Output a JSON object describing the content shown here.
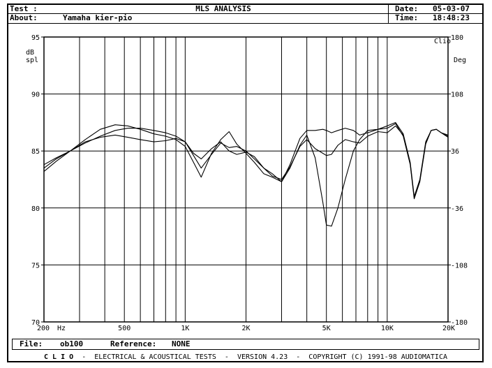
{
  "header": {
    "test_label": "Test :",
    "title": "MLS ANALYSIS",
    "date_label": "Date:",
    "date_value": "05-03-07",
    "about_label": "About:",
    "about_value": "Yamaha kier-pio",
    "time_label": "Time:",
    "time_value": "18:48:23"
  },
  "file_bar": {
    "file_label": "File:",
    "file_value": "ob100",
    "reference_label": "Reference:",
    "reference_value": "NONE"
  },
  "footer": {
    "brand": "C L I O",
    "text": "-  ELECTRICAL & ACOUSTICAL TESTS  -  VERSION 4.23  -  COPYRIGHT (C) 1991-98 AUDIOMATICA"
  },
  "chart_data": {
    "type": "line",
    "corner_label": "Clio",
    "y_left_label_line1": "dB",
    "y_left_label_line2": "spl",
    "y_right_label": "Deg",
    "x_unit_label": "Hz",
    "x_scale": "log",
    "xlim": [
      200,
      20000
    ],
    "ylim": [
      70,
      95
    ],
    "y_right_lim": [
      -180,
      180
    ],
    "x_tick_labels": [
      {
        "x": 200,
        "label": "200"
      },
      {
        "x": 500,
        "label": "500"
      },
      {
        "x": 1000,
        "label": "1K"
      },
      {
        "x": 2000,
        "label": "2K"
      },
      {
        "x": 5000,
        "label": "5K"
      },
      {
        "x": 10000,
        "label": "10K"
      },
      {
        "x": 20000,
        "label": "20K"
      }
    ],
    "x_gridlines": [
      300,
      400,
      500,
      600,
      700,
      800,
      900,
      1000,
      2000,
      3000,
      4000,
      5000,
      6000,
      7000,
      8000,
      9000,
      10000
    ],
    "y_left_ticks": [
      70,
      75,
      80,
      85,
      90,
      95
    ],
    "y_right_ticks": [
      -180,
      -108,
      -36,
      36,
      108,
      180
    ],
    "grid": true,
    "series": [
      {
        "x": [
          200,
          230,
          270,
          320,
          380,
          450,
          520,
          600,
          700,
          800,
          900,
          1000,
          1100,
          1200,
          1350,
          1500,
          1650,
          1800,
          2000,
          2200,
          2450,
          2700,
          3000,
          3300,
          3700,
          4000,
          4400,
          4800,
          5000,
          5300,
          5700,
          6200,
          6800,
          7300,
          8000,
          9000,
          10000,
          11000,
          12000,
          13000,
          13600,
          14500,
          15500,
          16500,
          17500,
          18500,
          20000
        ],
        "values": [
          83.2,
          84.1,
          85.0,
          86.0,
          86.9,
          87.3,
          87.2,
          86.9,
          86.5,
          86.3,
          86.0,
          85.4,
          84.0,
          82.7,
          84.8,
          86.0,
          86.7,
          85.6,
          84.8,
          84.0,
          83.0,
          82.7,
          82.3,
          83.5,
          85.5,
          86.4,
          84.4,
          80.5,
          78.5,
          78.4,
          80.0,
          82.5,
          85.0,
          86.0,
          86.8,
          86.9,
          87.2,
          87.5,
          86.5,
          84.0,
          81.0,
          82.5,
          85.8,
          86.8,
          86.9,
          86.6,
          86.2
        ]
      },
      {
        "x": [
          200,
          230,
          270,
          320,
          380,
          450,
          520,
          600,
          700,
          800,
          900,
          1000,
          1100,
          1200,
          1350,
          1500,
          1650,
          1800,
          2000,
          2200,
          2450,
          2700,
          3000,
          3300,
          3700,
          4000,
          4400,
          4800,
          5000,
          5300,
          5700,
          6200,
          6800,
          7300,
          8000,
          9000,
          10000,
          11000,
          12000,
          13000,
          13600,
          14500,
          15500,
          16500,
          17500,
          18500,
          20000
        ],
        "values": [
          83.8,
          84.4,
          85.0,
          85.8,
          86.2,
          86.4,
          86.2,
          86.0,
          85.8,
          85.9,
          86.1,
          85.8,
          84.6,
          83.5,
          84.7,
          85.7,
          85.3,
          85.4,
          85.0,
          84.3,
          83.5,
          83.0,
          82.3,
          83.8,
          86.1,
          86.8,
          86.8,
          86.9,
          86.8,
          86.6,
          86.8,
          87.0,
          86.8,
          86.4,
          86.6,
          86.9,
          87.0,
          87.4,
          86.3,
          83.8,
          80.8,
          82.3,
          85.6,
          86.8,
          86.9,
          86.6,
          86.3
        ]
      },
      {
        "x": [
          200,
          230,
          270,
          320,
          380,
          450,
          520,
          600,
          700,
          800,
          900,
          1000,
          1100,
          1200,
          1350,
          1500,
          1650,
          1800,
          2000,
          2200,
          2450,
          2700,
          3000,
          3300,
          3700,
          4000,
          4400,
          4800,
          5000,
          5300,
          5700,
          6200,
          6800,
          7300,
          8000,
          9000,
          10000,
          11000,
          12000,
          13000,
          13600,
          14500,
          15500,
          16500,
          17500,
          18500,
          20000
        ],
        "values": [
          83.5,
          84.3,
          85.0,
          85.7,
          86.3,
          86.8,
          87.0,
          87.0,
          86.8,
          86.6,
          86.3,
          85.8,
          84.8,
          84.3,
          85.2,
          85.8,
          85.0,
          84.7,
          84.9,
          84.5,
          83.5,
          82.8,
          82.5,
          83.6,
          85.4,
          86.0,
          85.2,
          84.8,
          84.6,
          84.7,
          85.5,
          86.0,
          85.8,
          85.7,
          86.3,
          86.7,
          86.6,
          87.2,
          86.4,
          83.9,
          80.9,
          82.4,
          85.7,
          86.8,
          86.9,
          86.6,
          86.4
        ]
      }
    ]
  }
}
